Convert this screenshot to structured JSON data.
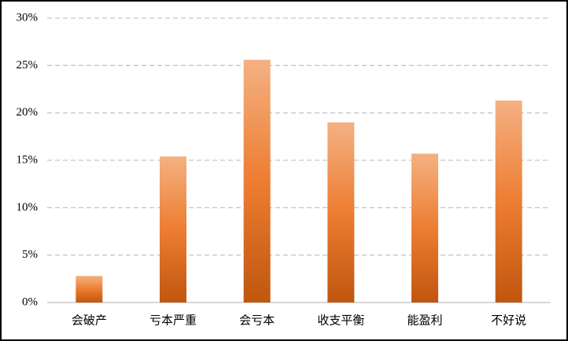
{
  "chart_data": {
    "type": "bar",
    "categories": [
      "会破产",
      "亏本严重",
      "会亏本",
      "收支平衡",
      "能盈利",
      "不好说"
    ],
    "values": [
      2.8,
      15.4,
      25.6,
      19.0,
      15.7,
      21.3
    ],
    "color": [
      "#f4b183",
      "#ed7d31",
      "#c0560f"
    ],
    "ylim": [
      0,
      30
    ],
    "yticks": [
      {
        "value": 0,
        "label": "0%"
      },
      {
        "value": 5,
        "label": "5%"
      },
      {
        "value": 10,
        "label": "10%"
      },
      {
        "value": 15,
        "label": "15%"
      },
      {
        "value": 20,
        "label": "20%"
      },
      {
        "value": 25,
        "label": "25%"
      },
      {
        "value": 30,
        "label": "30%"
      }
    ],
    "grid": true
  }
}
